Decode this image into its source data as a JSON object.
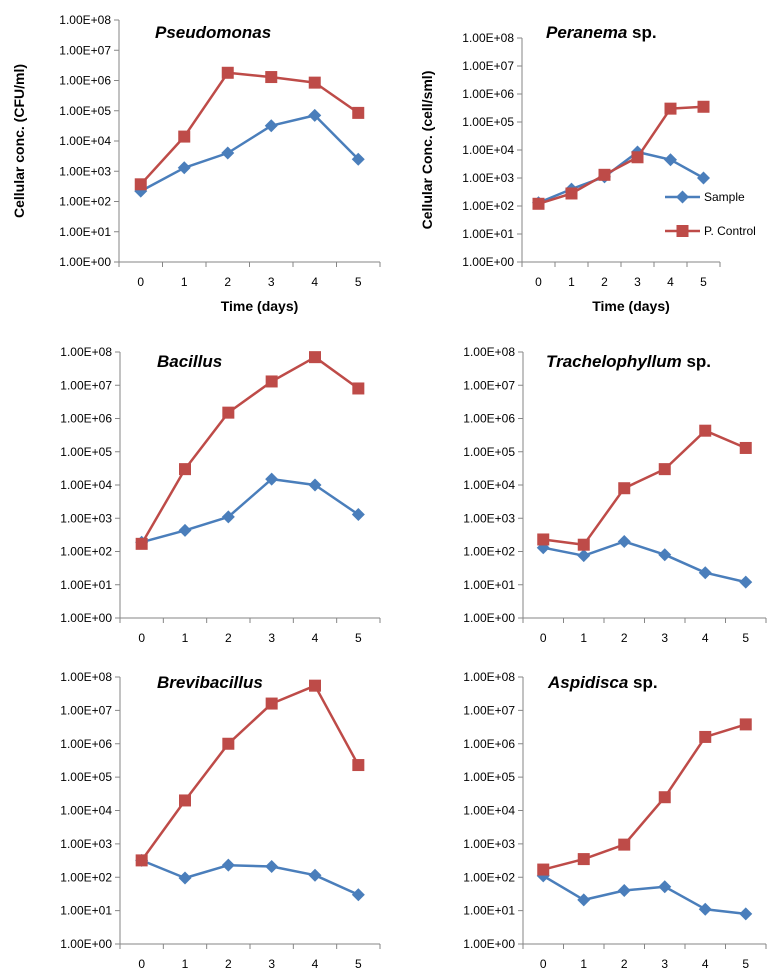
{
  "chart_data": [
    {
      "type": "line",
      "title_name": "Pseudomonas",
      "title_suffix": "",
      "ylabel": "Cellular conc. (CFU/ml)",
      "xlabel": "Time (days)",
      "x": [
        0,
        1,
        2,
        3,
        4,
        5
      ],
      "yscale": "log",
      "ylim": [
        1,
        100000000
      ],
      "ytick_labels": [
        "1.00E+00",
        "1.00E+01",
        "1.00E+02",
        "1.00E+03",
        "1.00E+04",
        "1.00E+05",
        "1.00E+06",
        "1.00E+07",
        "1.00E+08"
      ],
      "series": [
        {
          "name": "Sample",
          "values": [
            220,
            1300,
            4000,
            32000,
            70000,
            2500
          ]
        },
        {
          "name": "P. Control",
          "values": [
            370,
            14000,
            1800000,
            1300000,
            850000,
            85000
          ]
        }
      ]
    },
    {
      "type": "line",
      "title_name": "Peranema",
      "title_suffix": " sp.",
      "ylabel": "Cellular Conc. (cell/sml)",
      "xlabel": "Time (days)",
      "x": [
        0,
        1,
        2,
        3,
        4,
        5
      ],
      "yscale": "log",
      "ylim": [
        1,
        100000000
      ],
      "ytick_labels": [
        "1.00E+00",
        "1.00E+01",
        "1.00E+02",
        "1.00E+03",
        "1.00E+04",
        "1.00E+05",
        "1.00E+06",
        "1.00E+07",
        "1.00E+08"
      ],
      "legend": {
        "position": "right",
        "entries": [
          "Sample",
          "P. Control"
        ]
      },
      "series": [
        {
          "name": "Sample",
          "values": [
            130,
            400,
            1100,
            8500,
            4500,
            1000
          ]
        },
        {
          "name": "P. Control",
          "values": [
            120,
            280,
            1300,
            5500,
            300000,
            350000
          ]
        }
      ]
    },
    {
      "type": "line",
      "title_name": "Bacillus",
      "title_suffix": "",
      "ylabel": "",
      "xlabel": "",
      "x": [
        0,
        1,
        2,
        3,
        4,
        5
      ],
      "yscale": "log",
      "ylim": [
        1,
        100000000
      ],
      "ytick_labels": [
        "1.00E+00",
        "1.00E+01",
        "1.00E+02",
        "1.00E+03",
        "1.00E+04",
        "1.00E+05",
        "1.00E+06",
        "1.00E+07",
        "1.00E+08"
      ],
      "series": [
        {
          "name": "Sample",
          "values": [
            190,
            430,
            1100,
            15000,
            10000,
            1300
          ]
        },
        {
          "name": "P. Control",
          "values": [
            170,
            30000,
            1500000,
            13000000,
            70000000,
            8000000
          ]
        }
      ]
    },
    {
      "type": "line",
      "title_name": "Trachelophyllum",
      "title_suffix": " sp.",
      "ylabel": "",
      "xlabel": "",
      "x": [
        0,
        1,
        2,
        3,
        4,
        5
      ],
      "yscale": "log",
      "ylim": [
        1,
        100000000
      ],
      "ytick_labels": [
        "1.00E+00",
        "1.00E+01",
        "1.00E+02",
        "1.00E+03",
        "1.00E+04",
        "1.00E+05",
        "1.00E+06",
        "1.00E+07",
        "1.00E+08"
      ],
      "series": [
        {
          "name": "Sample",
          "values": [
            130,
            75,
            200,
            80,
            23,
            12
          ]
        },
        {
          "name": "P. Control",
          "values": [
            230,
            160,
            8000,
            30000,
            430000,
            130000
          ]
        }
      ]
    },
    {
      "type": "line",
      "title_name": "Brevibacillus",
      "title_suffix": "",
      "ylabel": "",
      "xlabel": "",
      "x": [
        0,
        1,
        2,
        3,
        4,
        5
      ],
      "yscale": "log",
      "ylim": [
        1,
        100000000
      ],
      "ytick_labels": [
        "1.00E+00",
        "1.00E+01",
        "1.00E+02",
        "1.00E+03",
        "1.00E+04",
        "1.00E+05",
        "1.00E+06",
        "1.00E+07",
        "1.00E+08"
      ],
      "series": [
        {
          "name": "Sample",
          "values": [
            320,
            95,
            230,
            210,
            115,
            30
          ]
        },
        {
          "name": "P. Control",
          "values": [
            320,
            20000,
            1000000,
            16000000,
            55000000,
            230000
          ]
        }
      ]
    },
    {
      "type": "line",
      "title_name": "Aspidisca",
      "title_suffix": " sp.",
      "ylabel": "",
      "xlabel": "",
      "x": [
        0,
        1,
        2,
        3,
        4,
        5
      ],
      "yscale": "log",
      "ylim": [
        1,
        100000000
      ],
      "ytick_labels": [
        "1.00E+00",
        "1.00E+01",
        "1.00E+02",
        "1.00E+03",
        "1.00E+04",
        "1.00E+05",
        "1.00E+06",
        "1.00E+07",
        "1.00E+08"
      ],
      "series": [
        {
          "name": "Sample",
          "values": [
            110,
            21,
            40,
            52,
            11,
            8
          ]
        },
        {
          "name": "P. Control",
          "values": [
            170,
            350,
            950,
            25000,
            1600000,
            3800000
          ]
        }
      ]
    }
  ],
  "colors": {
    "Sample": "#4a7ebb",
    "P. Control": "#be4b48",
    "axis": "#868686"
  }
}
